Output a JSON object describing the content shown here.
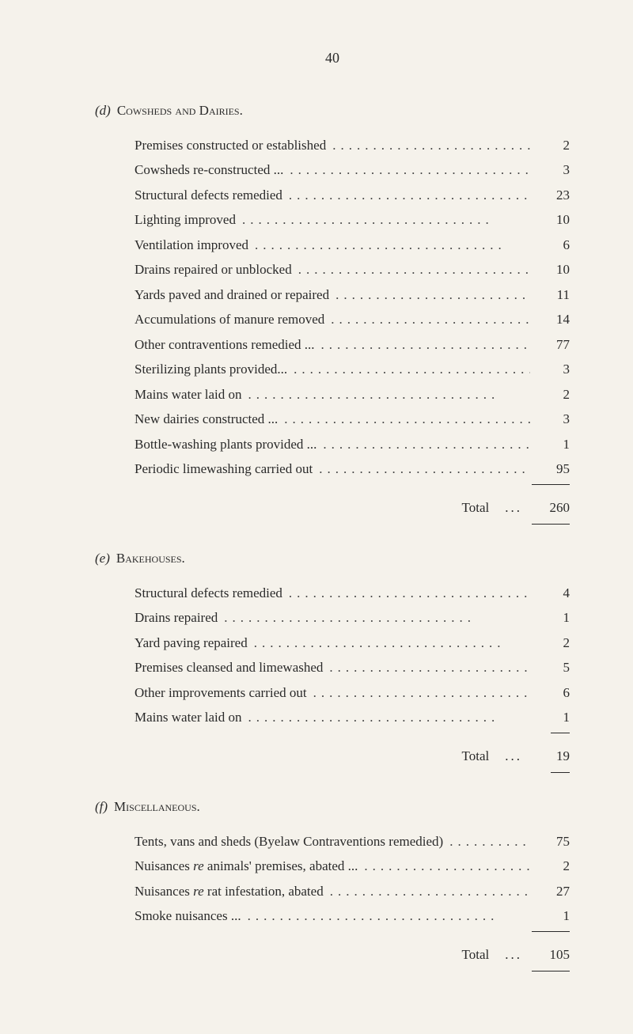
{
  "page_number": "40",
  "section_d": {
    "letter": "(d)",
    "title": "Cowsheds and Dairies.",
    "items": [
      {
        "label": "Premises constructed or established",
        "value": "2"
      },
      {
        "label": "Cowsheds re-constructed ...",
        "value": "3"
      },
      {
        "label": "Structural defects remedied",
        "value": "23"
      },
      {
        "label": "Lighting improved",
        "value": "10"
      },
      {
        "label": "Ventilation improved",
        "value": "6"
      },
      {
        "label": "Drains repaired or unblocked",
        "value": "10"
      },
      {
        "label": "Yards paved and drained or repaired",
        "value": "11"
      },
      {
        "label": "Accumulations of manure removed",
        "value": "14"
      },
      {
        "label": "Other contraventions remedied ...",
        "value": "77"
      },
      {
        "label": "Sterilizing plants provided...",
        "value": "3"
      },
      {
        "label": "Mains water laid on",
        "value": "2"
      },
      {
        "label": "New dairies constructed ...",
        "value": "3"
      },
      {
        "label": "Bottle-washing plants provided ...",
        "value": "1"
      },
      {
        "label": "Periodic limewashing carried out",
        "value": "95"
      }
    ],
    "total_label": "Total",
    "total_value": "260"
  },
  "section_e": {
    "letter": "(e)",
    "title": "Bakehouses.",
    "items": [
      {
        "label": "Structural defects remedied",
        "value": "4"
      },
      {
        "label": "Drains repaired",
        "value": "1"
      },
      {
        "label": "Yard paving repaired",
        "value": "2"
      },
      {
        "label": "Premises cleansed and limewashed",
        "value": "5"
      },
      {
        "label": "Other improvements carried out",
        "value": "6"
      },
      {
        "label": "Mains water laid on",
        "value": "1"
      }
    ],
    "total_label": "Total",
    "total_value": "19"
  },
  "section_f": {
    "letter": "(f)",
    "title": "Miscellaneous.",
    "items": [
      {
        "label": "Tents, vans and sheds (Byelaw Contraventions remedied)",
        "value": "75"
      },
      {
        "label": "Nuisances re animals' premises, abated ...",
        "value": "2",
        "italic_word": "re"
      },
      {
        "label": "Nuisances re rat infestation, abated",
        "value": "27",
        "italic_word": "re"
      },
      {
        "label": "Smoke nuisances ...",
        "value": "1"
      }
    ],
    "total_label": "Total",
    "total_value": "105"
  }
}
